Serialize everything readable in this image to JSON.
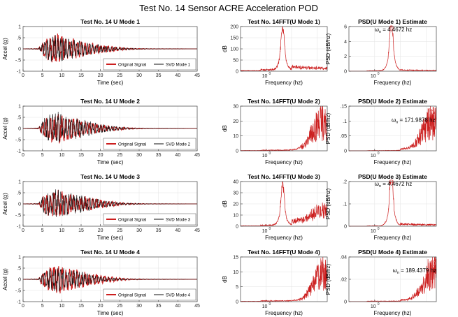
{
  "suptitle": "Test No. 14 Sensor ACRE Acceleration POD",
  "colors": {
    "signal": "#cc1f1f",
    "mode": "#111111",
    "grid": "#e6e6e6",
    "marker": "#e06060",
    "annot": "#2222bb"
  },
  "chart_data": [
    {
      "type": "line",
      "title": "Test No. 14 U Mode 1",
      "xlabel": "Time (sec)",
      "ylabel": "Accel (g)",
      "xlim": [
        0,
        45
      ],
      "ylim": [
        -1,
        1
      ],
      "xticks": [
        0,
        5,
        10,
        15,
        20,
        25,
        30,
        35,
        40,
        45
      ],
      "yticks": [
        -1,
        -0.5,
        0,
        0.5,
        1
      ],
      "grid": true,
      "legend_position": "bottom-right",
      "series": [
        {
          "name": "Original Signal",
          "env": [
            [
              0,
              0
            ],
            [
              4,
              0.02
            ],
            [
              5,
              0.3
            ],
            [
              6,
              0.5
            ],
            [
              7,
              0.6
            ],
            [
              8,
              0.62
            ],
            [
              9,
              0.7
            ],
            [
              10,
              0.6
            ],
            [
              11,
              0.55
            ],
            [
              12,
              0.5
            ],
            [
              14,
              0.45
            ],
            [
              16,
              0.35
            ],
            [
              18,
              0.28
            ],
            [
              20,
              0.22
            ],
            [
              22,
              0.15
            ],
            [
              24,
              0.1
            ],
            [
              26,
              0.06
            ],
            [
              28,
              0.03
            ],
            [
              32,
              0.01
            ],
            [
              45,
              0
            ]
          ]
        },
        {
          "name": "SVD Mode 1",
          "env": [
            [
              0,
              0
            ],
            [
              4,
              0.02
            ],
            [
              5,
              0.28
            ],
            [
              6,
              0.48
            ],
            [
              7,
              0.58
            ],
            [
              8,
              0.6
            ],
            [
              9,
              0.68
            ],
            [
              10,
              0.58
            ],
            [
              11,
              0.53
            ],
            [
              12,
              0.48
            ],
            [
              14,
              0.43
            ],
            [
              16,
              0.33
            ],
            [
              18,
              0.26
            ],
            [
              20,
              0.2
            ],
            [
              22,
              0.14
            ],
            [
              24,
              0.09
            ],
            [
              26,
              0.05
            ],
            [
              28,
              0.03
            ],
            [
              32,
              0.01
            ],
            [
              45,
              0
            ]
          ]
        }
      ]
    },
    {
      "type": "line",
      "title": "Test No. 14FFT(U Mode 1)",
      "xlabel": "Frequency (hz)",
      "ylabel": "dB",
      "xscale": "log",
      "ylim": [
        0,
        200
      ],
      "yticks": [
        0,
        50,
        100,
        150,
        200
      ],
      "xtick_labels": [
        "10^0"
      ],
      "grid": true,
      "series": [
        {
          "name": "",
          "peaks": [
            {
              "f": 4.47,
              "val": 170
            }
          ],
          "floor": 8,
          "tail": 15
        }
      ]
    },
    {
      "type": "line",
      "title": "PSD(U Mode 1) Estimate",
      "xlabel": "Frequency (hz)",
      "ylabel": "PSD (dB/hz)",
      "xscale": "log",
      "ylim": [
        0,
        6
      ],
      "yticks": [
        0,
        2,
        4,
        6
      ],
      "xtick_labels": [
        "10^0"
      ],
      "grid": true,
      "annotation": {
        "symbol": "ω",
        "subscript": "n",
        "text": " = 4.4672 hz"
      },
      "series": [
        {
          "name": "",
          "peaks": [
            {
              "f": 4.4672,
              "val": 5.9
            }
          ],
          "floor": 0.08,
          "tail": 0.1
        }
      ]
    },
    {
      "type": "line",
      "title": "Test No. 14 U Mode 2",
      "xlabel": "Time (sec)",
      "ylabel": "Accel (g)",
      "xlim": [
        0,
        45
      ],
      "ylim": [
        -1,
        1
      ],
      "xticks": [
        0,
        5,
        10,
        15,
        20,
        25,
        30,
        35,
        40,
        45
      ],
      "yticks": [
        -1,
        -0.5,
        0,
        0.5,
        1
      ],
      "grid": true,
      "legend_position": "bottom-right",
      "series": [
        {
          "name": "Original Signal",
          "env": [
            [
              0,
              0
            ],
            [
              4,
              0.02
            ],
            [
              5,
              0.3
            ],
            [
              6,
              0.55
            ],
            [
              7,
              0.6
            ],
            [
              8,
              0.65
            ],
            [
              9,
              0.75
            ],
            [
              10,
              0.65
            ],
            [
              11,
              0.55
            ],
            [
              12,
              0.5
            ],
            [
              14,
              0.45
            ],
            [
              16,
              0.35
            ],
            [
              18,
              0.28
            ],
            [
              20,
              0.2
            ],
            [
              22,
              0.14
            ],
            [
              24,
              0.09
            ],
            [
              26,
              0.05
            ],
            [
              28,
              0.03
            ],
            [
              32,
              0.01
            ],
            [
              45,
              0
            ]
          ]
        },
        {
          "name": "SVD Mode 2",
          "env": [
            [
              0,
              0
            ],
            [
              4,
              0.02
            ],
            [
              5,
              0.4
            ],
            [
              6,
              0.6
            ],
            [
              7,
              0.65
            ],
            [
              8,
              0.7
            ],
            [
              9,
              0.8
            ],
            [
              10,
              0.7
            ],
            [
              11,
              0.6
            ],
            [
              12,
              0.55
            ],
            [
              14,
              0.5
            ],
            [
              16,
              0.38
            ],
            [
              18,
              0.3
            ],
            [
              20,
              0.22
            ],
            [
              22,
              0.15
            ],
            [
              24,
              0.1
            ],
            [
              26,
              0.06
            ],
            [
              28,
              0.03
            ],
            [
              32,
              0.01
            ],
            [
              45,
              0
            ]
          ]
        }
      ]
    },
    {
      "type": "line",
      "title": "Test No. 14FFT(U Mode 2)",
      "xlabel": "Frequency (hz)",
      "ylabel": "dB",
      "xscale": "log",
      "ylim": [
        0,
        30
      ],
      "yticks": [
        0,
        10,
        20,
        30
      ],
      "xtick_labels": [
        "10^0"
      ],
      "grid": true,
      "series": [
        {
          "name": "",
          "peaks": [
            {
              "f": 150,
              "val": 25
            }
          ],
          "floor": 0.5,
          "tail": 0
        }
      ]
    },
    {
      "type": "line",
      "title": "PSD(U Mode 2) Estimate",
      "xlabel": "Frequency (hz)",
      "ylabel": "PSD (dB/hz)",
      "xscale": "log",
      "ylim": [
        0,
        0.15
      ],
      "yticks": [
        0,
        0.05,
        0.1,
        0.15
      ],
      "xtick_labels": [
        "10^0"
      ],
      "grid": true,
      "annotation": {
        "symbol": "ω",
        "subscript": "n",
        "text": " = 171.9878 hz"
      },
      "series": [
        {
          "name": "",
          "peaks": [
            {
              "f": 171.9878,
              "val": 0.13
            }
          ],
          "floor": 0.001,
          "tail": 0.005
        }
      ]
    },
    {
      "type": "line",
      "title": "Test No. 14 U Mode 3",
      "xlabel": "Time (sec)",
      "ylabel": "Accel (g)",
      "xlim": [
        0,
        45
      ],
      "ylim": [
        -1,
        1
      ],
      "xticks": [
        0,
        5,
        10,
        15,
        20,
        25,
        30,
        35,
        40,
        45
      ],
      "yticks": [
        -1,
        -0.5,
        0,
        0.5,
        1
      ],
      "grid": true,
      "legend_position": "bottom-right",
      "series": [
        {
          "name": "Original Signal",
          "env": [
            [
              0,
              0
            ],
            [
              4,
              0.02
            ],
            [
              5,
              0.3
            ],
            [
              6,
              0.5
            ],
            [
              7,
              0.58
            ],
            [
              8,
              0.6
            ],
            [
              9,
              0.7
            ],
            [
              10,
              0.6
            ],
            [
              11,
              0.55
            ],
            [
              12,
              0.5
            ],
            [
              14,
              0.45
            ],
            [
              16,
              0.35
            ],
            [
              18,
              0.28
            ],
            [
              20,
              0.22
            ],
            [
              22,
              0.15
            ],
            [
              24,
              0.1
            ],
            [
              26,
              0.06
            ],
            [
              28,
              0.03
            ],
            [
              32,
              0.01
            ],
            [
              45,
              0
            ]
          ]
        },
        {
          "name": "SVD Mode 3",
          "env": [
            [
              0,
              0
            ],
            [
              4,
              0.02
            ],
            [
              5,
              0.35
            ],
            [
              6,
              0.55
            ],
            [
              7,
              0.6
            ],
            [
              8,
              0.65
            ],
            [
              9,
              0.72
            ],
            [
              10,
              0.62
            ],
            [
              11,
              0.56
            ],
            [
              12,
              0.5
            ],
            [
              14,
              0.45
            ],
            [
              16,
              0.35
            ],
            [
              18,
              0.28
            ],
            [
              20,
              0.2
            ],
            [
              22,
              0.14
            ],
            [
              24,
              0.09
            ],
            [
              26,
              0.05
            ],
            [
              28,
              0.03
            ],
            [
              32,
              0.01
            ],
            [
              45,
              0
            ]
          ]
        }
      ]
    },
    {
      "type": "line",
      "title": "Test No. 14FFT(U Mode 3)",
      "xlabel": "Frequency (hz)",
      "ylabel": "dB",
      "xscale": "log",
      "ylim": [
        0,
        40
      ],
      "yticks": [
        0,
        10,
        20,
        30,
        40
      ],
      "xtick_labels": [
        "10^0"
      ],
      "grid": true,
      "series": [
        {
          "name": "",
          "peaks": [
            {
              "f": 4.47,
              "val": 32
            },
            {
              "f": 150,
              "val": 15
            }
          ],
          "floor": 1,
          "tail": 5
        }
      ]
    },
    {
      "type": "line",
      "title": "PSD(U Mode 3) Estimate",
      "xlabel": "Frequency (hz)",
      "ylabel": "PSD (dB/hz)",
      "xscale": "log",
      "ylim": [
        0,
        0.2
      ],
      "yticks": [
        0,
        0.1,
        0.2
      ],
      "xtick_labels": [
        "10^0"
      ],
      "grid": true,
      "annotation": {
        "symbol": "ω",
        "subscript": "n",
        "text": " = 4.4672 hz"
      },
      "series": [
        {
          "name": "",
          "peaks": [
            {
              "f": 4.4672,
              "val": 0.2
            }
          ],
          "floor": 0.002,
          "tail": 0.01
        }
      ]
    },
    {
      "type": "line",
      "title": "Test No. 14 U Mode 4",
      "xlabel": "Time (sec)",
      "ylabel": "Accel (g)",
      "xlim": [
        0,
        45
      ],
      "ylim": [
        -1,
        1
      ],
      "xticks": [
        0,
        5,
        10,
        15,
        20,
        25,
        30,
        35,
        40,
        45
      ],
      "yticks": [
        -1,
        -0.5,
        0,
        0.5,
        1
      ],
      "grid": true,
      "legend_position": "bottom-right",
      "series": [
        {
          "name": "Original Signal",
          "env": [
            [
              0,
              0
            ],
            [
              4,
              0.02
            ],
            [
              5,
              0.3
            ],
            [
              6,
              0.5
            ],
            [
              7,
              0.6
            ],
            [
              8,
              0.62
            ],
            [
              9,
              0.7
            ],
            [
              10,
              0.6
            ],
            [
              11,
              0.55
            ],
            [
              12,
              0.5
            ],
            [
              14,
              0.45
            ],
            [
              16,
              0.35
            ],
            [
              18,
              0.28
            ],
            [
              20,
              0.22
            ],
            [
              22,
              0.15
            ],
            [
              24,
              0.1
            ],
            [
              26,
              0.06
            ],
            [
              28,
              0.03
            ],
            [
              32,
              0.01
            ],
            [
              45,
              0
            ]
          ]
        },
        {
          "name": "SVD Mode 4",
          "env": [
            [
              0,
              0
            ],
            [
              4,
              0.02
            ],
            [
              5,
              0.3
            ],
            [
              6,
              0.45
            ],
            [
              7,
              0.5
            ],
            [
              8,
              0.55
            ],
            [
              9,
              0.6
            ],
            [
              10,
              0.55
            ],
            [
              11,
              0.5
            ],
            [
              12,
              0.45
            ],
            [
              14,
              0.4
            ],
            [
              16,
              0.3
            ],
            [
              18,
              0.22
            ],
            [
              20,
              0.15
            ],
            [
              22,
              0.1
            ],
            [
              24,
              0.06
            ],
            [
              26,
              0.03
            ],
            [
              28,
              0.02
            ],
            [
              32,
              0.01
            ],
            [
              45,
              0
            ]
          ]
        }
      ]
    },
    {
      "type": "line",
      "title": "Test No. 14FFT(U Mode 4)",
      "xlabel": "Frequency (hz)",
      "ylabel": "dB",
      "xscale": "log",
      "ylim": [
        0,
        15
      ],
      "yticks": [
        0,
        5,
        10,
        15
      ],
      "xtick_labels": [
        "10^0"
      ],
      "grid": true,
      "series": [
        {
          "name": "",
          "peaks": [
            {
              "f": 170,
              "val": 12
            }
          ],
          "floor": 0.3,
          "tail": 0
        }
      ]
    },
    {
      "type": "line",
      "title": "PSD(U Mode 4) Estimate",
      "xlabel": "Frequency (hz)",
      "ylabel": "PSD (dB/hz)",
      "xscale": "log",
      "ylim": [
        0,
        0.04
      ],
      "yticks": [
        0,
        0.02,
        0.04
      ],
      "xtick_labels": [
        "10^0"
      ],
      "grid": true,
      "annotation": {
        "symbol": "ω",
        "subscript": "n",
        "text": " = 189.4379 hz"
      },
      "series": [
        {
          "name": "",
          "peaks": [
            {
              "f": 189.4379,
              "val": 0.035
            }
          ],
          "floor": 0.0005,
          "tail": 0.001
        }
      ]
    }
  ]
}
